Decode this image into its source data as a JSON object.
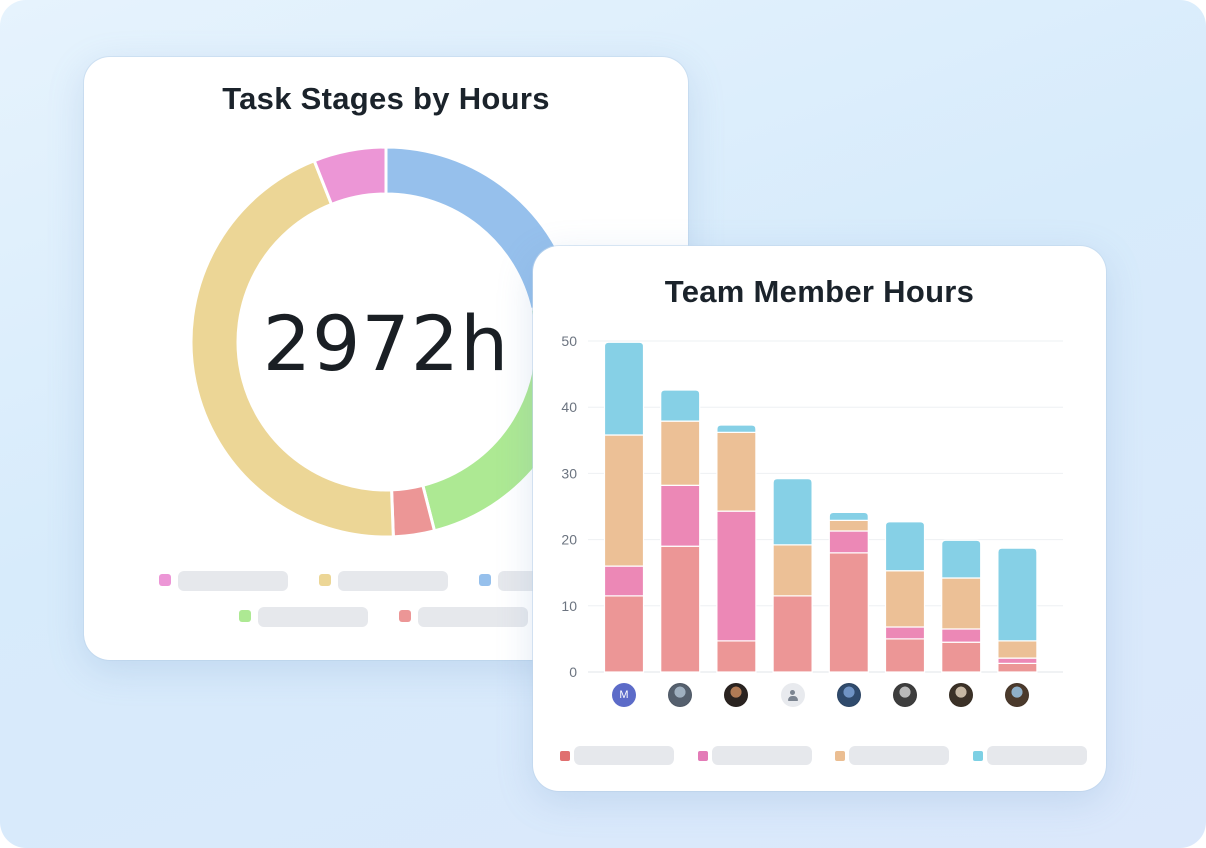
{
  "colors": {
    "background": "#dbeafb",
    "card": "#ffffff",
    "title": "#1b232b"
  },
  "chart_data": [
    {
      "type": "pie",
      "style": "donut",
      "title": "Task Stages by Hours",
      "center_label": "2972h",
      "slices": [
        {
          "value": 0.215,
          "color": "#96c0ec"
        },
        {
          "value": 0.245,
          "color": "#ade993"
        },
        {
          "value": 0.034,
          "color": "#ec9696"
        },
        {
          "value": 0.446,
          "color": "#ecd696"
        },
        {
          "value": 0.06,
          "color": "#ec96d6"
        }
      ],
      "legend": {
        "placement": "bottom",
        "swatch_colors": [
          "#ec96d6",
          "#ecd696",
          "#96c0ec",
          "#ade993",
          "#ec9696"
        ]
      }
    },
    {
      "type": "bar",
      "stacked": true,
      "title": "Team Member Hours",
      "ylim": [
        0,
        50
      ],
      "yticks": [
        "0",
        "10",
        "20",
        "30",
        "40",
        "50"
      ],
      "grid": true,
      "categories": [
        "M",
        "",
        "",
        "",
        "",
        "",
        "",
        ""
      ],
      "series": [
        {
          "color": "#ec9696",
          "values": [
            11.5,
            19,
            4.7,
            11.5,
            18,
            5,
            4.5,
            1.3
          ]
        },
        {
          "color": "#ec88b6",
          "values": [
            4.5,
            9.2,
            19.6,
            0,
            3.3,
            1.8,
            2,
            0.8
          ]
        },
        {
          "color": "#ecc096",
          "values": [
            19.8,
            9.7,
            11.9,
            7.7,
            1.6,
            8.5,
            7.7,
            2.6
          ]
        },
        {
          "color": "#86d0e6",
          "values": [
            14,
            4.7,
            1.1,
            10,
            1.2,
            7.4,
            5.7,
            14
          ]
        }
      ],
      "legend": {
        "placement": "bottom",
        "swatch_colors": [
          "#e06f6f",
          "#e37bb7",
          "#ebbe92",
          "#7dd0e4"
        ]
      }
    }
  ],
  "bar_chart_avatars": [
    {
      "kind": "initial",
      "text": "M",
      "color": "#5c6bc8"
    },
    {
      "kind": "photo",
      "colors": [
        "#9fb0c0",
        "#55606e"
      ]
    },
    {
      "kind": "photo",
      "colors": [
        "#b07a55",
        "#2a2320"
      ]
    },
    {
      "kind": "placeholder",
      "icon": "user-icon"
    },
    {
      "kind": "photo",
      "colors": [
        "#6f93c4",
        "#2f4a6c"
      ]
    },
    {
      "kind": "photo",
      "colors": [
        "#b9b9b9",
        "#3d3d3d"
      ]
    },
    {
      "kind": "photo",
      "colors": [
        "#c6b7a3",
        "#3b3127"
      ]
    },
    {
      "kind": "photo",
      "colors": [
        "#8fb0c9",
        "#4b3a2c"
      ]
    }
  ]
}
